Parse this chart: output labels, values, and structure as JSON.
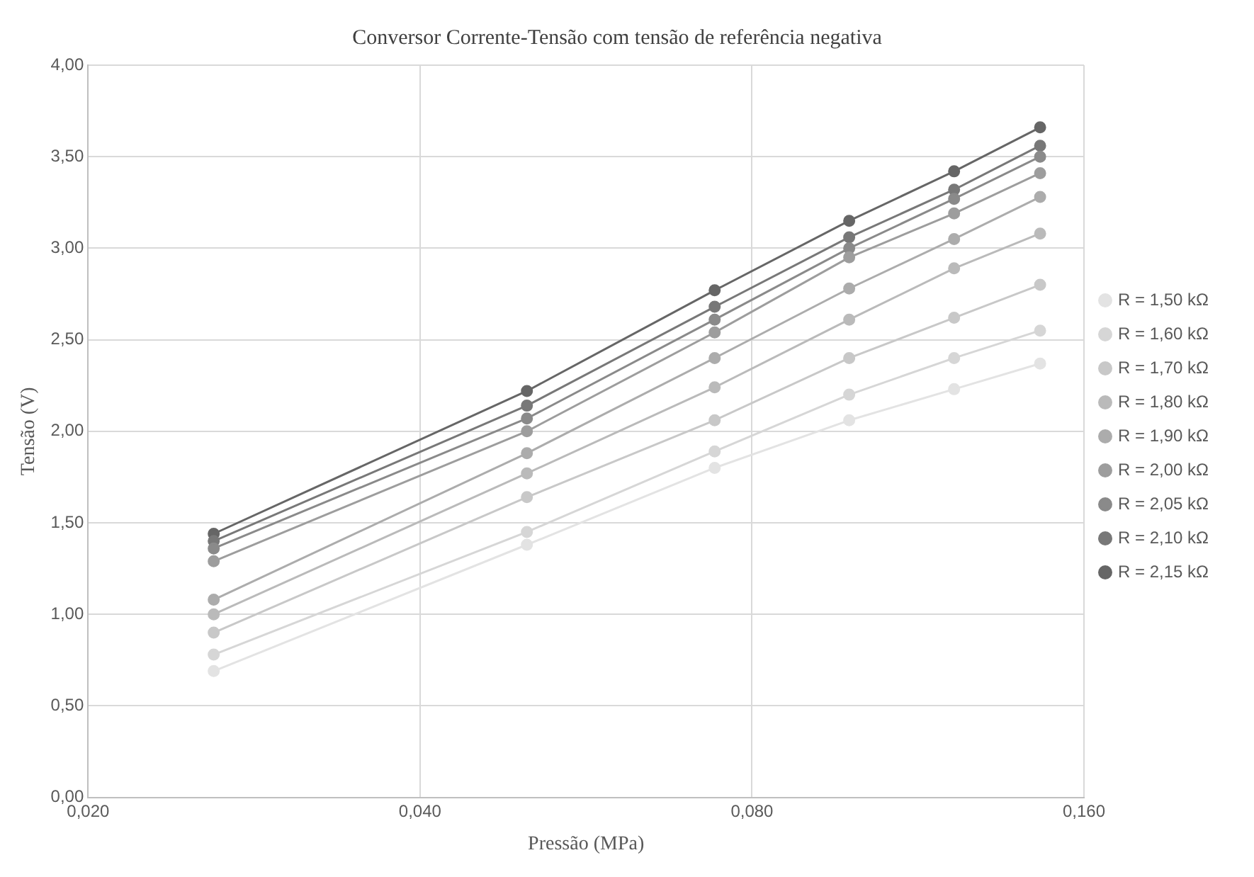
{
  "chart_data": {
    "type": "line",
    "title": "Conversor Corrente-Tensão com tensão de referência negativa",
    "xlabel": "Pressão (MPa)",
    "ylabel": "Tensão (V)",
    "log": "x",
    "x": [
      0.026,
      0.05,
      0.074,
      0.098,
      0.122,
      0.146
    ],
    "xlim": [
      0.02,
      0.16
    ],
    "xticks": [
      {
        "value": 0.02,
        "label": "0,020"
      },
      {
        "value": 0.04,
        "label": "0,040"
      },
      {
        "value": 0.08,
        "label": "0,080"
      },
      {
        "value": 0.16,
        "label": "0,160"
      }
    ],
    "ylim": [
      0,
      4
    ],
    "yticks": [
      {
        "value": 0,
        "label": "0,00"
      },
      {
        "value": 0.5,
        "label": "0,50"
      },
      {
        "value": 1,
        "label": "1,00"
      },
      {
        "value": 1.5,
        "label": "1,50"
      },
      {
        "value": 2,
        "label": "2,00"
      },
      {
        "value": 2.5,
        "label": "2,50"
      },
      {
        "value": 3,
        "label": "3,00"
      },
      {
        "value": 3.5,
        "label": "3,50"
      },
      {
        "value": 4,
        "label": "4,00"
      }
    ],
    "grid": true,
    "legend": "right",
    "marker": "circle",
    "line_style": "solid",
    "series": [
      {
        "name": "R = 1,50 kΩ",
        "color": "#e3e3e3",
        "values": [
          0.69,
          1.38,
          1.8,
          2.06,
          2.23,
          2.37
        ]
      },
      {
        "name": "R = 1,60 kΩ",
        "color": "#d6d6d6",
        "values": [
          0.78,
          1.45,
          1.89,
          2.2,
          2.4,
          2.55
        ]
      },
      {
        "name": "R = 1,70 kΩ",
        "color": "#c8c8c8",
        "values": [
          0.9,
          1.64,
          2.06,
          2.4,
          2.62,
          2.8
        ]
      },
      {
        "name": "R = 1,80 kΩ",
        "color": "#bababa",
        "values": [
          1.0,
          1.77,
          2.24,
          2.61,
          2.89,
          3.08
        ]
      },
      {
        "name": "R = 1,90 kΩ",
        "color": "#acacac",
        "values": [
          1.08,
          1.88,
          2.4,
          2.78,
          3.05,
          3.28
        ]
      },
      {
        "name": "R = 2,00 kΩ",
        "color": "#9d9d9d",
        "values": [
          1.29,
          2.0,
          2.54,
          2.95,
          3.19,
          3.41
        ]
      },
      {
        "name": "R = 2,05 kΩ",
        "color": "#8a8a8a",
        "values": [
          1.36,
          2.07,
          2.61,
          3.0,
          3.27,
          3.5
        ]
      },
      {
        "name": "R = 2,10 kΩ",
        "color": "#787878",
        "values": [
          1.4,
          2.14,
          2.68,
          3.06,
          3.32,
          3.56
        ]
      },
      {
        "name": "R = 2,15 kΩ",
        "color": "#666666",
        "values": [
          1.44,
          2.22,
          2.77,
          3.15,
          3.42,
          3.66
        ]
      }
    ]
  }
}
